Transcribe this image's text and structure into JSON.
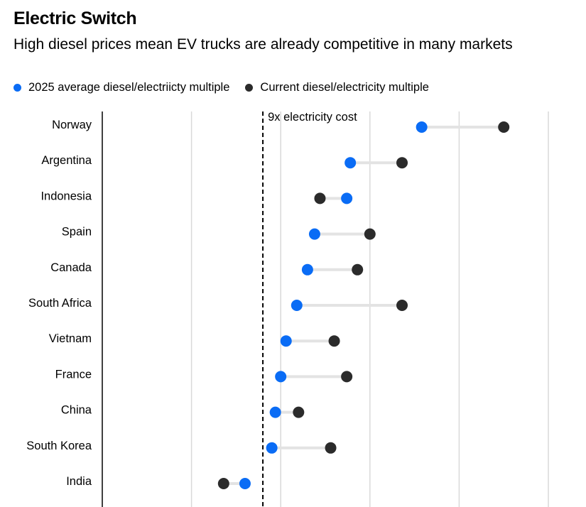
{
  "chart_data": {
    "type": "dot",
    "title": "Electric Switch",
    "subtitle": "High diesel prices mean EV trucks are already competitive in many markets",
    "legend": [
      {
        "name": "2025 average diesel/electriicty multiple",
        "color": "#0a6cf5"
      },
      {
        "name": "Current diesel/electricity multiple",
        "color": "#2b2b2b"
      }
    ],
    "categories": [
      "Norway",
      "Argentina",
      "Indonesia",
      "Spain",
      "Canada",
      "South Africa",
      "Vietnam",
      "France",
      "China",
      "South Korea",
      "India"
    ],
    "series": [
      {
        "name": "2025 average diesel/electriicty multiple",
        "color": "#0a6cf5",
        "values": [
          17.9,
          13.9,
          13.7,
          11.9,
          11.5,
          10.9,
          10.3,
          10.0,
          9.7,
          9.5,
          8.0
        ]
      },
      {
        "name": "Current diesel/electricity multiple",
        "color": "#2b2b2b",
        "values": [
          22.5,
          16.8,
          12.2,
          15.0,
          14.3,
          16.8,
          13.0,
          13.7,
          11.0,
          12.8,
          6.8
        ]
      }
    ],
    "reference_line": {
      "value": 9,
      "label": "9x electricity cost"
    },
    "xlim": [
      0,
      25
    ],
    "gridlines": [
      5,
      10,
      15,
      20,
      25
    ],
    "grid": true,
    "legend_position": "top-left"
  }
}
